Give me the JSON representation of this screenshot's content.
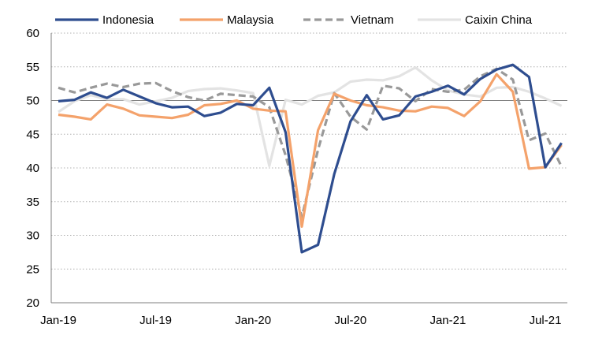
{
  "chart_data": {
    "type": "line",
    "title": "",
    "xlabel": "",
    "ylabel": "",
    "ylim": [
      20,
      60
    ],
    "yticks": [
      "60",
      "55",
      "50",
      "45",
      "40",
      "35",
      "30",
      "25",
      "20"
    ],
    "xtick_labels": [
      {
        "index": 0,
        "label": "Jan-19"
      },
      {
        "index": 6,
        "label": "Jul-19"
      },
      {
        "index": 12,
        "label": "Jan-20"
      },
      {
        "index": 18,
        "label": "Jul-20"
      },
      {
        "index": 24,
        "label": "Jan-21"
      },
      {
        "index": 30,
        "label": "Jul-21"
      }
    ],
    "x": [
      "Jan-19",
      "Feb-19",
      "Mar-19",
      "Apr-19",
      "May-19",
      "Jun-19",
      "Jul-19",
      "Aug-19",
      "Sep-19",
      "Oct-19",
      "Nov-19",
      "Dec-19",
      "Jan-20",
      "Feb-20",
      "Mar-20",
      "Apr-20",
      "May-20",
      "Jun-20",
      "Jul-20",
      "Aug-20",
      "Sep-20",
      "Oct-20",
      "Nov-20",
      "Dec-20",
      "Jan-21",
      "Feb-21",
      "Mar-21",
      "Apr-21",
      "May-21",
      "Jun-21",
      "Jul-21",
      "Aug-21"
    ],
    "grid": "horizontal-dotted",
    "legend_position": "top",
    "series": [
      {
        "name": "Indonesia",
        "color": "#2e4d8f",
        "style": "solid",
        "values": [
          49.9,
          50.1,
          51.2,
          50.4,
          51.6,
          50.6,
          49.6,
          49.0,
          49.1,
          47.7,
          48.2,
          49.5,
          49.3,
          51.9,
          45.3,
          27.5,
          28.6,
          39.1,
          46.9,
          50.8,
          47.2,
          47.8,
          50.6,
          51.3,
          52.2,
          50.9,
          53.2,
          54.6,
          55.3,
          53.5,
          40.1,
          43.7
        ]
      },
      {
        "name": "Malaysia",
        "color": "#f4a26b",
        "style": "solid",
        "values": [
          47.9,
          47.6,
          47.2,
          49.4,
          48.8,
          47.8,
          47.6,
          47.4,
          47.9,
          49.3,
          49.5,
          50.0,
          48.8,
          48.5,
          48.4,
          31.3,
          45.6,
          51.0,
          50.0,
          49.3,
          49.0,
          48.5,
          48.4,
          49.1,
          48.9,
          47.7,
          49.9,
          53.9,
          51.3,
          39.9,
          40.1,
          43.4
        ]
      },
      {
        "name": "Vietnam",
        "color": "#999999",
        "style": "dashed",
        "values": [
          51.9,
          51.2,
          51.9,
          52.5,
          52.0,
          52.5,
          52.6,
          51.4,
          50.5,
          50.0,
          51.0,
          50.8,
          50.6,
          49.0,
          41.9,
          32.7,
          42.7,
          51.1,
          47.6,
          45.7,
          52.2,
          51.8,
          49.9,
          51.7,
          51.3,
          51.6,
          53.6,
          54.7,
          53.1,
          44.1,
          45.1,
          40.2
        ]
      },
      {
        "name": "Caixin China",
        "color": "#e3e3e3",
        "style": "solid",
        "values": [
          48.3,
          49.9,
          50.8,
          50.2,
          50.2,
          49.4,
          49.9,
          50.4,
          51.4,
          51.7,
          51.8,
          51.5,
          51.1,
          40.3,
          50.1,
          49.4,
          50.7,
          51.2,
          52.8,
          53.1,
          53.0,
          53.6,
          54.9,
          53.0,
          51.5,
          50.9,
          50.6,
          51.9,
          52.0,
          51.3,
          50.3,
          49.2
        ]
      }
    ]
  }
}
